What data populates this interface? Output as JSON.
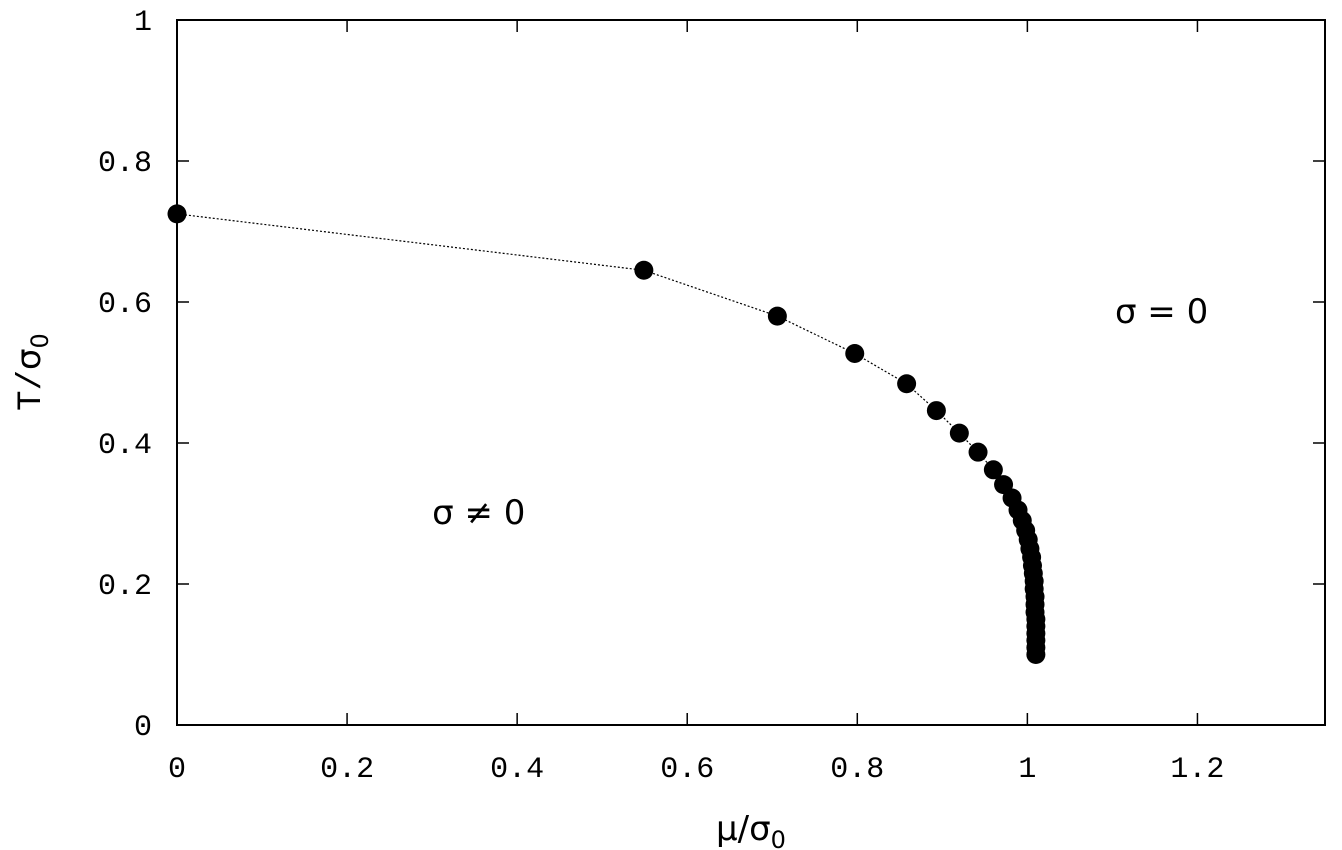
{
  "chart_data": {
    "type": "scatter",
    "xlabel": {
      "base": "μ/σ",
      "sub": "0"
    },
    "ylabel": {
      "mono": "T/",
      "base": "σ",
      "sub": "0"
    },
    "xlim": [
      0,
      1.35
    ],
    "ylim": [
      0,
      1
    ],
    "x_ticks": [
      {
        "v": 0,
        "label": "0"
      },
      {
        "v": 0.2,
        "label": "0.2"
      },
      {
        "v": 0.4,
        "label": "0.4"
      },
      {
        "v": 0.6,
        "label": "0.6"
      },
      {
        "v": 0.8,
        "label": "0.8"
      },
      {
        "v": 1.0,
        "label": "1"
      },
      {
        "v": 1.2,
        "label": "1.2"
      }
    ],
    "y_ticks": [
      {
        "v": 0,
        "label": "0"
      },
      {
        "v": 0.2,
        "label": "0.2"
      },
      {
        "v": 0.4,
        "label": "0.4"
      },
      {
        "v": 0.6,
        "label": "0.6"
      },
      {
        "v": 0.8,
        "label": "0.8"
      },
      {
        "v": 1.0,
        "label": "1"
      }
    ],
    "grid": false,
    "connect_points": true,
    "annotations": [
      {
        "text": "σ = 0",
        "x": 1.103,
        "y": 0.57
      },
      {
        "text": "σ ≠ 0",
        "x": 0.3,
        "y": 0.285
      }
    ],
    "points": [
      {
        "x": 0.0,
        "y": 0.725
      },
      {
        "x": 0.549,
        "y": 0.645
      },
      {
        "x": 0.706,
        "y": 0.58
      },
      {
        "x": 0.797,
        "y": 0.527
      },
      {
        "x": 0.858,
        "y": 0.484
      },
      {
        "x": 0.893,
        "y": 0.446
      },
      {
        "x": 0.92,
        "y": 0.414
      },
      {
        "x": 0.942,
        "y": 0.387
      },
      {
        "x": 0.96,
        "y": 0.362
      },
      {
        "x": 0.972,
        "y": 0.341
      },
      {
        "x": 0.982,
        "y": 0.322
      },
      {
        "x": 0.989,
        "y": 0.305
      },
      {
        "x": 0.994,
        "y": 0.29
      },
      {
        "x": 0.998,
        "y": 0.276
      },
      {
        "x": 1.001,
        "y": 0.263
      },
      {
        "x": 1.003,
        "y": 0.25
      },
      {
        "x": 1.005,
        "y": 0.238
      },
      {
        "x": 1.006,
        "y": 0.226
      },
      {
        "x": 1.007,
        "y": 0.215
      },
      {
        "x": 1.008,
        "y": 0.204
      },
      {
        "x": 1.008,
        "y": 0.193
      },
      {
        "x": 1.009,
        "y": 0.182
      },
      {
        "x": 1.009,
        "y": 0.171
      },
      {
        "x": 1.009,
        "y": 0.16
      },
      {
        "x": 1.01,
        "y": 0.15
      },
      {
        "x": 1.01,
        "y": 0.14
      },
      {
        "x": 1.01,
        "y": 0.13
      },
      {
        "x": 1.01,
        "y": 0.12
      },
      {
        "x": 1.01,
        "y": 0.11
      },
      {
        "x": 1.01,
        "y": 0.1
      }
    ]
  }
}
